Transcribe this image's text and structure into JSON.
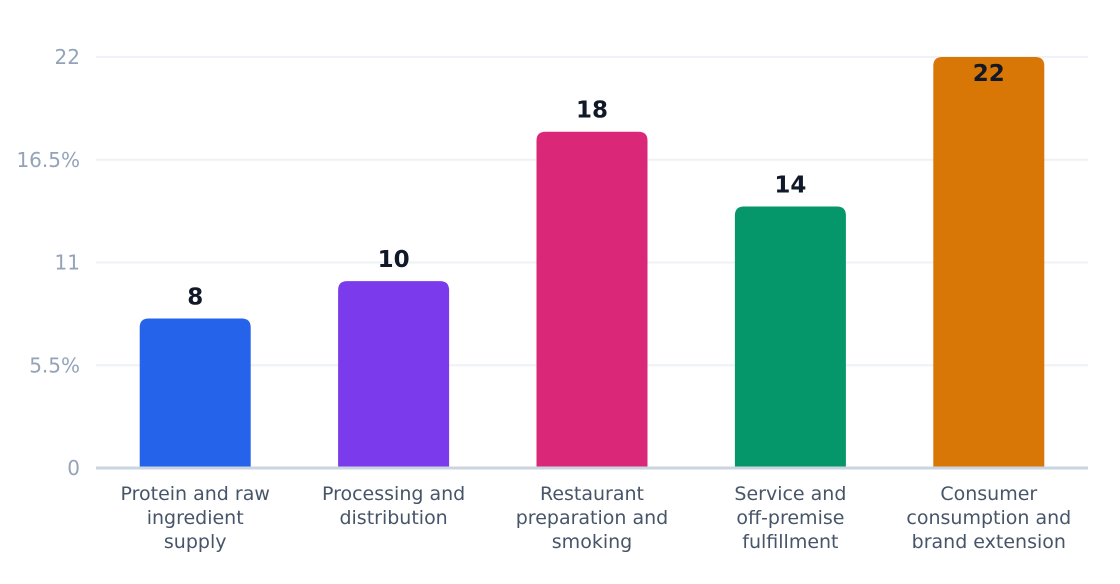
{
  "chart_data": {
    "type": "bar",
    "title": "",
    "xlabel": "",
    "ylabel": "",
    "ylim": [
      0,
      22
    ],
    "grid": true,
    "legend": "none",
    "y_ticks": [
      {
        "value": 0,
        "label": "0"
      },
      {
        "value": 5.5,
        "label": "5.5%"
      },
      {
        "value": 11,
        "label": "11"
      },
      {
        "value": 16.5,
        "label": "16.5%"
      },
      {
        "value": 22,
        "label": "22"
      }
    ],
    "categories": [
      [
        "Protein and raw",
        "ingredient",
        "supply"
      ],
      [
        "Processing and",
        "distribution"
      ],
      [
        "Restaurant",
        "preparation and",
        "smoking"
      ],
      [
        "Service and",
        "off-premise",
        "fulfillment"
      ],
      [
        "Consumer",
        "consumption and",
        "brand extension"
      ]
    ],
    "values": [
      8,
      10,
      18,
      14,
      22
    ],
    "value_labels": [
      "8",
      "10",
      "18",
      "14",
      "22"
    ],
    "colors": [
      "#2563eb",
      "#7c3aed",
      "#db2777",
      "#059669",
      "#d97706"
    ]
  }
}
